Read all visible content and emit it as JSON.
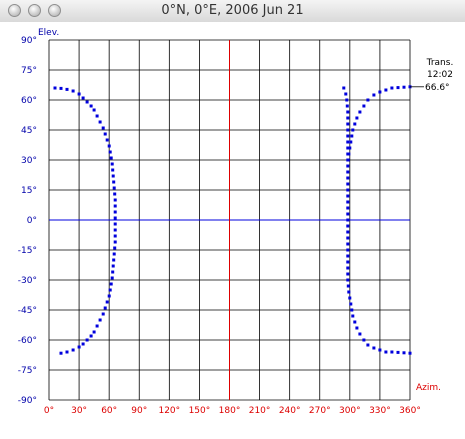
{
  "window": {
    "title": "0°N, 0°E, 2006 Jun 21"
  },
  "chart_data": {
    "type": "scatter",
    "title": "",
    "xlabel": "Azim.",
    "ylabel": "Elev.",
    "xlim": [
      0,
      360
    ],
    "ylim": [
      -90,
      90
    ],
    "grid": true,
    "x_ticks": [
      "0°",
      "30°",
      "60°",
      "90°",
      "120°",
      "150°",
      "180°",
      "210°",
      "240°",
      "270°",
      "300°",
      "330°",
      "360°"
    ],
    "y_ticks": [
      "90°",
      "75°",
      "60°",
      "45°",
      "30°",
      "15°",
      "0°",
      "-15°",
      "-30°",
      "-45°",
      "-60°",
      "-75°",
      "-90°"
    ],
    "annotation": {
      "label": "Trans.",
      "time": "12:02",
      "elevation": "66.6°"
    },
    "colors": {
      "points": "#0000dd",
      "horizon": "#0000dd",
      "meridian": "#dd0000",
      "axis_labels": "#0000aa",
      "x_tick_labels": "#dd0000"
    },
    "series": [
      {
        "points": [
          [
            6,
            66
          ],
          [
            12,
            65.8
          ],
          [
            18,
            65.3
          ],
          [
            24,
            64.5
          ],
          [
            30,
            63
          ],
          [
            34,
            61
          ],
          [
            38,
            59
          ],
          [
            42,
            57
          ],
          [
            45,
            55
          ],
          [
            48,
            52
          ],
          [
            51,
            49
          ],
          [
            54,
            46
          ],
          [
            56,
            43
          ],
          [
            58,
            40
          ],
          [
            60,
            37
          ],
          [
            61,
            34
          ],
          [
            62,
            31
          ],
          [
            63,
            28
          ],
          [
            63.5,
            25
          ],
          [
            64,
            22
          ],
          [
            64.5,
            19
          ],
          [
            65,
            16
          ],
          [
            65.5,
            13
          ],
          [
            66,
            10
          ],
          [
            66,
            7
          ],
          [
            66,
            4
          ],
          [
            66,
            1
          ],
          [
            66,
            -2
          ],
          [
            66,
            -5
          ],
          [
            66,
            -8
          ],
          [
            66,
            -11
          ],
          [
            65.5,
            -14
          ],
          [
            65,
            -17
          ],
          [
            64.5,
            -20
          ],
          [
            64,
            -23
          ],
          [
            63.5,
            -26
          ],
          [
            63,
            -29
          ],
          [
            62,
            -32
          ],
          [
            61,
            -35
          ],
          [
            60,
            -38
          ],
          [
            58,
            -41
          ],
          [
            56,
            -44
          ],
          [
            54,
            -47
          ],
          [
            51,
            -50
          ],
          [
            48,
            -53
          ],
          [
            45,
            -56
          ],
          [
            42,
            -58
          ],
          [
            38,
            -60
          ],
          [
            34,
            -62
          ],
          [
            30,
            -63.5
          ],
          [
            24,
            -65
          ],
          [
            18,
            -66
          ],
          [
            12,
            -66.6
          ],
          [
            294,
            66
          ],
          [
            296,
            63
          ],
          [
            297,
            60
          ],
          [
            297.5,
            57
          ],
          [
            298,
            54
          ],
          [
            298,
            51
          ],
          [
            298,
            48
          ],
          [
            298,
            45
          ],
          [
            298,
            42
          ],
          [
            298,
            39
          ],
          [
            298,
            36
          ],
          [
            298,
            33
          ],
          [
            298,
            30
          ],
          [
            298,
            27
          ],
          [
            298,
            24
          ],
          [
            298,
            21
          ],
          [
            298,
            18
          ],
          [
            298,
            15
          ],
          [
            298,
            12
          ],
          [
            298,
            9
          ],
          [
            298,
            6
          ],
          [
            298,
            3
          ],
          [
            298,
            0
          ],
          [
            298,
            -3
          ],
          [
            298,
            -6
          ],
          [
            298,
            -9
          ],
          [
            298,
            -12
          ],
          [
            298,
            -15
          ],
          [
            298,
            -18
          ],
          [
            298,
            -21
          ],
          [
            298,
            -24
          ],
          [
            298,
            -27
          ],
          [
            298,
            -30
          ],
          [
            298.5,
            -33
          ],
          [
            299,
            -36
          ],
          [
            300,
            -39
          ],
          [
            301,
            -42
          ],
          [
            302,
            -45
          ],
          [
            303,
            -48
          ],
          [
            305,
            -51
          ],
          [
            307,
            -54
          ],
          [
            310,
            -57
          ],
          [
            314,
            -60
          ],
          [
            318,
            -62.5
          ],
          [
            324,
            -64
          ],
          [
            330,
            -65
          ],
          [
            336,
            -66
          ],
          [
            342,
            -66
          ],
          [
            348,
            -66.2
          ],
          [
            354,
            -66.4
          ],
          [
            360,
            -66.6
          ],
          [
            360,
            66.6
          ],
          [
            354,
            66.4
          ],
          [
            348,
            66.2
          ],
          [
            342,
            66
          ],
          [
            336,
            65
          ],
          [
            330,
            64
          ],
          [
            324,
            62.5
          ],
          [
            318,
            60
          ],
          [
            314,
            57
          ],
          [
            310,
            54
          ],
          [
            307,
            51
          ],
          [
            305,
            48
          ],
          [
            303,
            45
          ],
          [
            302,
            42
          ],
          [
            301,
            39
          ],
          [
            300,
            36
          ],
          [
            299,
            33
          ],
          [
            298.5,
            30
          ]
        ]
      }
    ]
  }
}
